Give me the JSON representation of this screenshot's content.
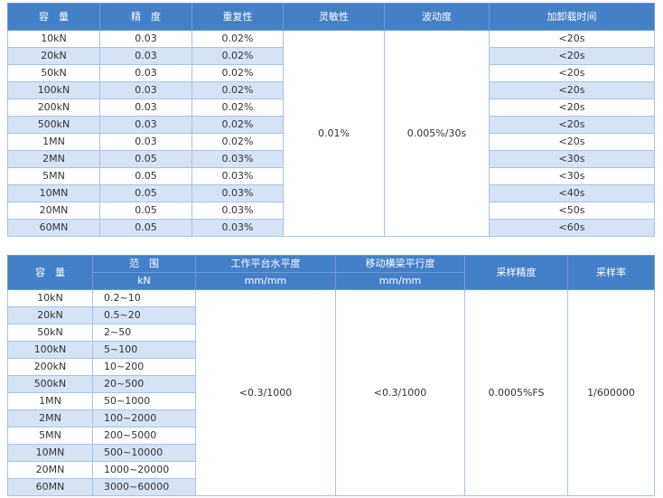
{
  "table1": {
    "headers": [
      "容　量",
      "精　度",
      "重复性",
      "灵敏性",
      "波动度",
      "加卸载时间"
    ],
    "capacity": [
      "10kN",
      "20kN",
      "50kN",
      "100kN",
      "200kN",
      "500kN",
      "1MN",
      "2MN",
      "5MN",
      "10MN",
      "20MN",
      "60MN"
    ],
    "accuracy": [
      "0.03",
      "0.03",
      "0.03",
      "0.03",
      "0.03",
      "0.03",
      "0.03",
      "0.05",
      "0.05",
      "0.05",
      "0.05",
      "0.05"
    ],
    "repeatability": [
      "0.02%",
      "0.02%",
      "0.02%",
      "0.02%",
      "0.02%",
      "0.02%",
      "0.02%",
      "0.03%",
      "0.03%",
      "0.03%",
      "0.03%",
      "0.03%"
    ],
    "sensitivity": "0.01%",
    "fluctuation": "0.005%/30s",
    "load_time": [
      "<20s",
      "<20s",
      "<20s",
      "<20s",
      "<20s",
      "<20s",
      "<20s",
      "<30s",
      "<30s",
      "<40s",
      "<50s",
      "<60s"
    ]
  },
  "table2": {
    "headers": {
      "capacity": "容　量",
      "range": "范　围",
      "range_unit": "kN",
      "platform": "工作平台水平度",
      "platform_unit": "mm/mm",
      "beam": "移动横梁平行度",
      "beam_unit": "mm/mm",
      "sampling_accuracy": "采样精度",
      "sampling_rate": "采样率"
    },
    "capacity": [
      "10kN",
      "20kN",
      "50kN",
      "100kN",
      "200kN",
      "500kN",
      "1MN",
      "2MN",
      "5MN",
      "10MN",
      "20MN",
      "60MN"
    ],
    "range": [
      "0.2~10",
      "0.5~20",
      "2~50",
      "5~100",
      "10~200",
      "20~500",
      "50~1000",
      "100~2000",
      "200~5000",
      "500~10000",
      "1000~20000",
      "3000~60000"
    ],
    "platform": "<0.3/1000",
    "beam": "<0.3/1000",
    "sampling_accuracy": "0.0005%FS",
    "sampling_rate": "1/600000"
  }
}
